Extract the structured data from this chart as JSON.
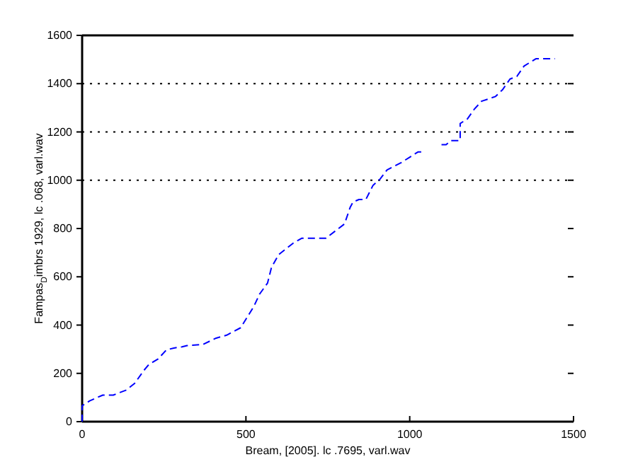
{
  "chart_data": {
    "type": "line",
    "xlabel": "Bream, [2005]. lc .7695, varl.wav",
    "ylabel": "Fampas$_{D}$imbrs 1929, lc .068, varl.wav",
    "x": [
      0,
      0,
      23,
      63,
      95,
      135,
      160,
      189,
      203,
      232,
      257,
      280,
      305,
      320,
      369,
      409,
      441,
      484,
      524,
      542,
      566,
      578,
      600,
      645,
      671,
      722,
      744,
      773,
      801,
      818,
      827,
      845,
      866,
      888,
      909,
      931,
      974,
      1003,
      1025,
      1039,
      1068,
      1097,
      1111,
      1125,
      1147,
      1154,
      1154,
      1176,
      1197,
      1219,
      1262,
      1284,
      1306,
      1327,
      1349,
      1385,
      1443
    ],
    "series": [
      {
        "color": "#0000ff",
        "values": [
          0,
          66,
          86,
          110,
          110,
          131,
          158,
          213,
          236,
          260,
          297,
          305,
          310,
          315,
          320,
          346,
          358,
          389,
          477,
          529,
          574,
          639,
          692,
          740,
          760,
          760,
          760,
          790,
          819,
          887,
          910,
          920,
          920,
          979,
          1004,
          1043,
          1073,
          1098,
          1117,
          1117,
          null,
          1147,
          1147,
          1164,
          1164,
          1164,
          1235,
          1254,
          1294,
          1327,
          1347,
          1376,
          1419,
          1430,
          1473,
          1503,
          1503
        ]
      }
    ],
    "xlim": [
      0,
      1500
    ],
    "xticks": [
      0,
      500,
      1000,
      1500
    ],
    "ylim": [
      0,
      1600
    ],
    "yticks": [
      0,
      200,
      400,
      600,
      800,
      1000,
      1200,
      1400,
      1600
    ],
    "line_style": "dashed",
    "marker": "none",
    "grid": false,
    "ref_lines": [
      {
        "axis": "y",
        "value": 1000,
        "color": "#000000",
        "line_style": "dotted"
      },
      {
        "axis": "y",
        "value": 1200,
        "color": "#000000",
        "line_style": "dotted"
      },
      {
        "axis": "y",
        "value": 1400,
        "color": "#000000",
        "line_style": "dotted"
      },
      {
        "axis": "y",
        "value": 1600,
        "color": "#000000",
        "line_style": "solid"
      }
    ]
  }
}
